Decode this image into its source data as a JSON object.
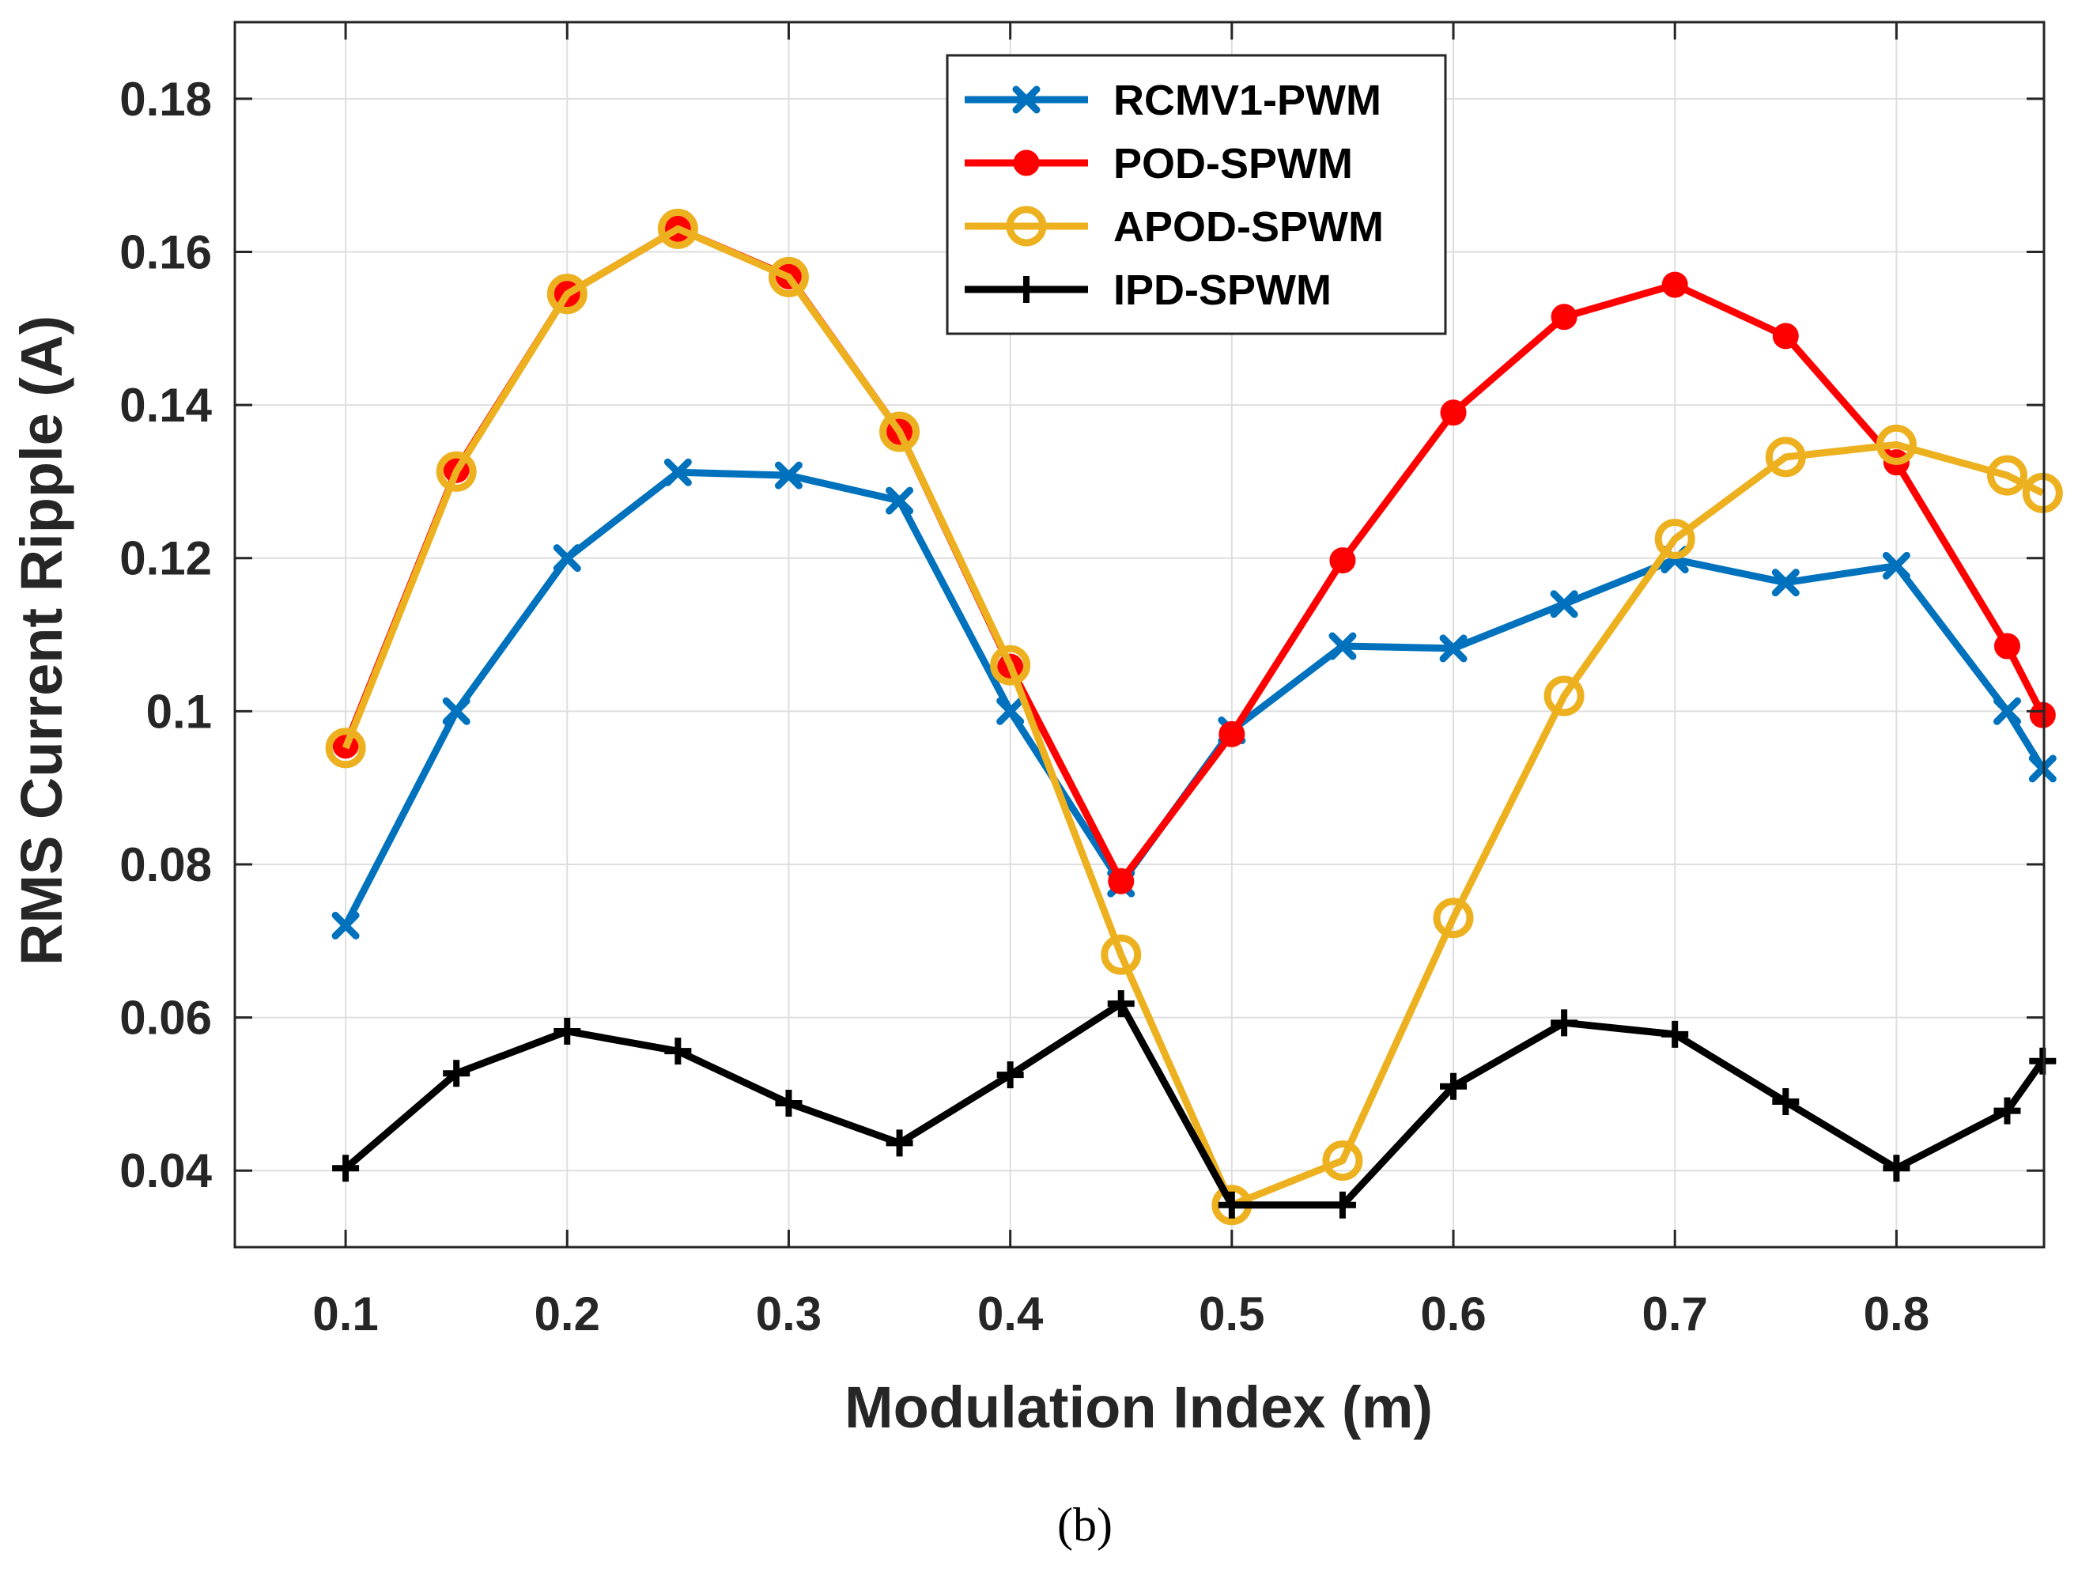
{
  "chart_data": {
    "type": "line",
    "title": "",
    "xlabel": "Modulation Index (m)",
    "ylabel": "RMS Current Ripple (A)",
    "caption": "(b)",
    "xlim": [
      0.05,
      0.8666
    ],
    "ylim": [
      0.03,
      0.19
    ],
    "x_ticks": [
      0.1,
      0.2,
      0.3,
      0.4,
      0.5,
      0.6,
      0.7,
      0.8
    ],
    "x_tick_labels": [
      "0.1",
      "0.2",
      "0.3",
      "0.4",
      "0.5",
      "0.6",
      "0.7",
      "0.8"
    ],
    "y_ticks": [
      0.04,
      0.06,
      0.08,
      0.1,
      0.12,
      0.14,
      0.16,
      0.18
    ],
    "y_tick_labels": [
      "0.04",
      "0.06",
      "0.08",
      "0.1",
      "0.12",
      "0.14",
      "0.16",
      "0.18"
    ],
    "grid": true,
    "legend_position": "top-center",
    "x": [
      0.1,
      0.15,
      0.2,
      0.25,
      0.3,
      0.35,
      0.4,
      0.45,
      0.5,
      0.55,
      0.6,
      0.65,
      0.7,
      0.75,
      0.8,
      0.85,
      0.866
    ],
    "series": [
      {
        "name": "RCMV1-PWM",
        "color": "#0072bd",
        "marker": "x",
        "values": [
          0.072,
          0.1,
          0.12,
          0.1312,
          0.1308,
          0.1275,
          0.1,
          0.0775,
          0.0975,
          0.1085,
          0.1082,
          0.114,
          0.1198,
          0.1168,
          0.119,
          0.1,
          0.0925
        ]
      },
      {
        "name": "POD-SPWM",
        "color": "#ff0000",
        "marker": "filled-circle",
        "values": [
          0.0955,
          0.1315,
          0.1545,
          0.163,
          0.1568,
          0.1365,
          0.1058,
          0.0778,
          0.097,
          0.1197,
          0.139,
          0.1515,
          0.1557,
          0.149,
          0.1325,
          0.1085,
          0.0995
        ]
      },
      {
        "name": "APOD-SPWM",
        "color": "#edb120",
        "marker": "open-circle",
        "values": [
          0.0952,
          0.1313,
          0.1545,
          0.163,
          0.1567,
          0.1365,
          0.106,
          0.0682,
          0.0355,
          0.0413,
          0.073,
          0.102,
          0.1225,
          0.1332,
          0.1348,
          0.1308,
          0.1285
        ]
      },
      {
        "name": "IPD-SPWM",
        "color": "#000000",
        "marker": "plus",
        "values": [
          0.0403,
          0.0527,
          0.0582,
          0.0556,
          0.0488,
          0.0436,
          0.0525,
          0.0618,
          0.0355,
          0.0355,
          0.051,
          0.0593,
          0.0578,
          0.049,
          0.0403,
          0.0478,
          0.0543
        ]
      }
    ]
  }
}
